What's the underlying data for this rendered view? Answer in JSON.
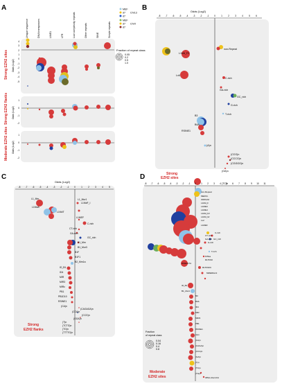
{
  "panels": {
    "A": {
      "letter": "A",
      "columns": [
        "Unique sequence",
        "DNA transposons",
        "LINE1",
        "LTR",
        "Low complexity repeats",
        "Other repeats",
        "SINE",
        "Simple repeats"
      ],
      "legend_lines": [
        {
          "text": "MEF",
          "color": "#9ecae1"
        },
        {
          "text": "d7",
          "color": "#f2c200"
        },
        {
          "text": "d7",
          "color": "#2255cc"
        },
        {
          "text": "MEF",
          "color": "#7fbf5f"
        },
        {
          "text": "d7",
          "color": "#f2c200"
        },
        {
          "text": "d7",
          "color": "#8b2a2a"
        }
      ],
      "legend_chr13": "Chr13",
      "legend_chrx": "ChrX",
      "size_title": "Fraction of repeat class",
      "size_values": [
        "0.05",
        "0.2",
        "0.5",
        "1.0"
      ],
      "subpanels": [
        {
          "label": "Strong EZH2 sites",
          "ylabel": "Odds (Log2)",
          "ticks": [
            "4",
            "3",
            "2",
            "1",
            "0",
            "-1",
            "-2",
            "-3",
            "-4",
            "-5"
          ]
        },
        {
          "label": "Strong EZH2 flanks",
          "ylabel": "Odds (Log2)",
          "ticks": [
            "1",
            "0",
            "-1",
            "-2"
          ]
        },
        {
          "label": "Moderate EZH2 sites",
          "ylabel": "Odds (Log2)",
          "ticks": [
            "1",
            "0",
            "-1",
            "-2"
          ]
        }
      ]
    },
    "B": {
      "letter": "B",
      "axis_title": "Odds (Log2)",
      "ticks": [
        "-8",
        "-7",
        "-6",
        "-5",
        "-4",
        "-3",
        "-2",
        "-1",
        "0",
        "1",
        "2",
        "3",
        "4",
        "5",
        "6"
      ],
      "labels": [
        "non-Repeat",
        "L1Md_F2",
        "Lx6",
        "C-rich",
        "GA-rich",
        "GC_rich",
        "G-rich",
        "T-rich",
        "B3",
        "B4A",
        "RSINE1",
        "(A)n",
        "(CCG)n",
        "(CCCG)n",
        "(CGGGG)n",
        "(GA)n",
        "(TA)n",
        "(TC)n"
      ],
      "footer": [
        "Strong",
        "EZH2 sites"
      ]
    },
    "C": {
      "letter": "C",
      "axis_title": "Odds (Log2)",
      "ticks": [
        "-8",
        "-7",
        "-6",
        "-5",
        "-4",
        "-3",
        "-2",
        "-1",
        "0",
        "1",
        "2",
        "3",
        "4",
        "5"
      ],
      "labels": [
        "L1_Mm",
        "L1_Mur1",
        "L1MdA",
        "L1MdT",
        "L1MdF_I",
        "L1MEF",
        "C-rich",
        "CT-rich",
        "GA-rich",
        "GC_rich",
        "B1_Mm",
        "B1_Mur3",
        "B1F",
        "B1F1",
        "B2_Mm1a",
        "ID_B1",
        "ID4",
        "MIR",
        "MIR3",
        "MIRc",
        "PB1",
        "PB1D10",
        "RSINE1",
        "(CA)n",
        "(CAGAGA)n",
        "(CCA)n",
        "(CCG)n",
        "(GGA)n",
        "(T)n",
        "(TCTG)n",
        "(TG)n",
        "(TTTTG)n"
      ],
      "footer": [
        "Strong",
        "EZH2 flanks"
      ]
    },
    "D": {
      "letter": "D",
      "ticks": [
        "-8",
        "-7",
        "-6",
        "-5",
        "-4",
        "-3",
        "-2",
        "-1",
        "0",
        "1",
        "2",
        "3",
        "4",
        "5",
        "6",
        "7",
        "8",
        "9",
        "10",
        "11"
      ],
      "labels": [
        "non-Repeat",
        "MERVL",
        "ORR1A0",
        "L1Md_F",
        "L1MEC",
        "L1MEd",
        "L1Md_F2",
        "L1Md_Gf",
        "Lx2",
        "L1MEF",
        "C-rich",
        "CT-rich",
        "GA-rich",
        "GC_rich",
        "G-rich",
        "T-rich",
        "MTEa",
        "RLTR10",
        "RMER17A",
        "RLTR10C",
        "MMERGLN",
        "ID_B1",
        "B1_Mur1",
        "B3",
        "B4A",
        "ID4",
        "MIR",
        "MIR3",
        "PB1",
        "RSINE1",
        "(A)n",
        "(CA)n",
        "(CAGA)n",
        "(CCG)n",
        "(GA)n",
        "(T)n",
        "(TC)n",
        "(TG)n",
        "tRNA-Ala-GCA"
      ],
      "size_title": [
        "Fraction",
        "of repeat class"
      ],
      "size_values": [
        "0.04",
        "0.16",
        "0.4",
        "0.8"
      ],
      "footer": [
        "Moderate",
        "EZH2 sites"
      ]
    }
  },
  "colors": {
    "panel_bg": "#eeeeee",
    "red": "#d63b3b",
    "navy": "#1f3f9f",
    "sky": "#8fc3e8",
    "gold": "#eec21a",
    "olive": "#6b6b2a",
    "maroon": "#7a1f1f",
    "green": "#6cae5b",
    "label_red": "#d32626"
  }
}
